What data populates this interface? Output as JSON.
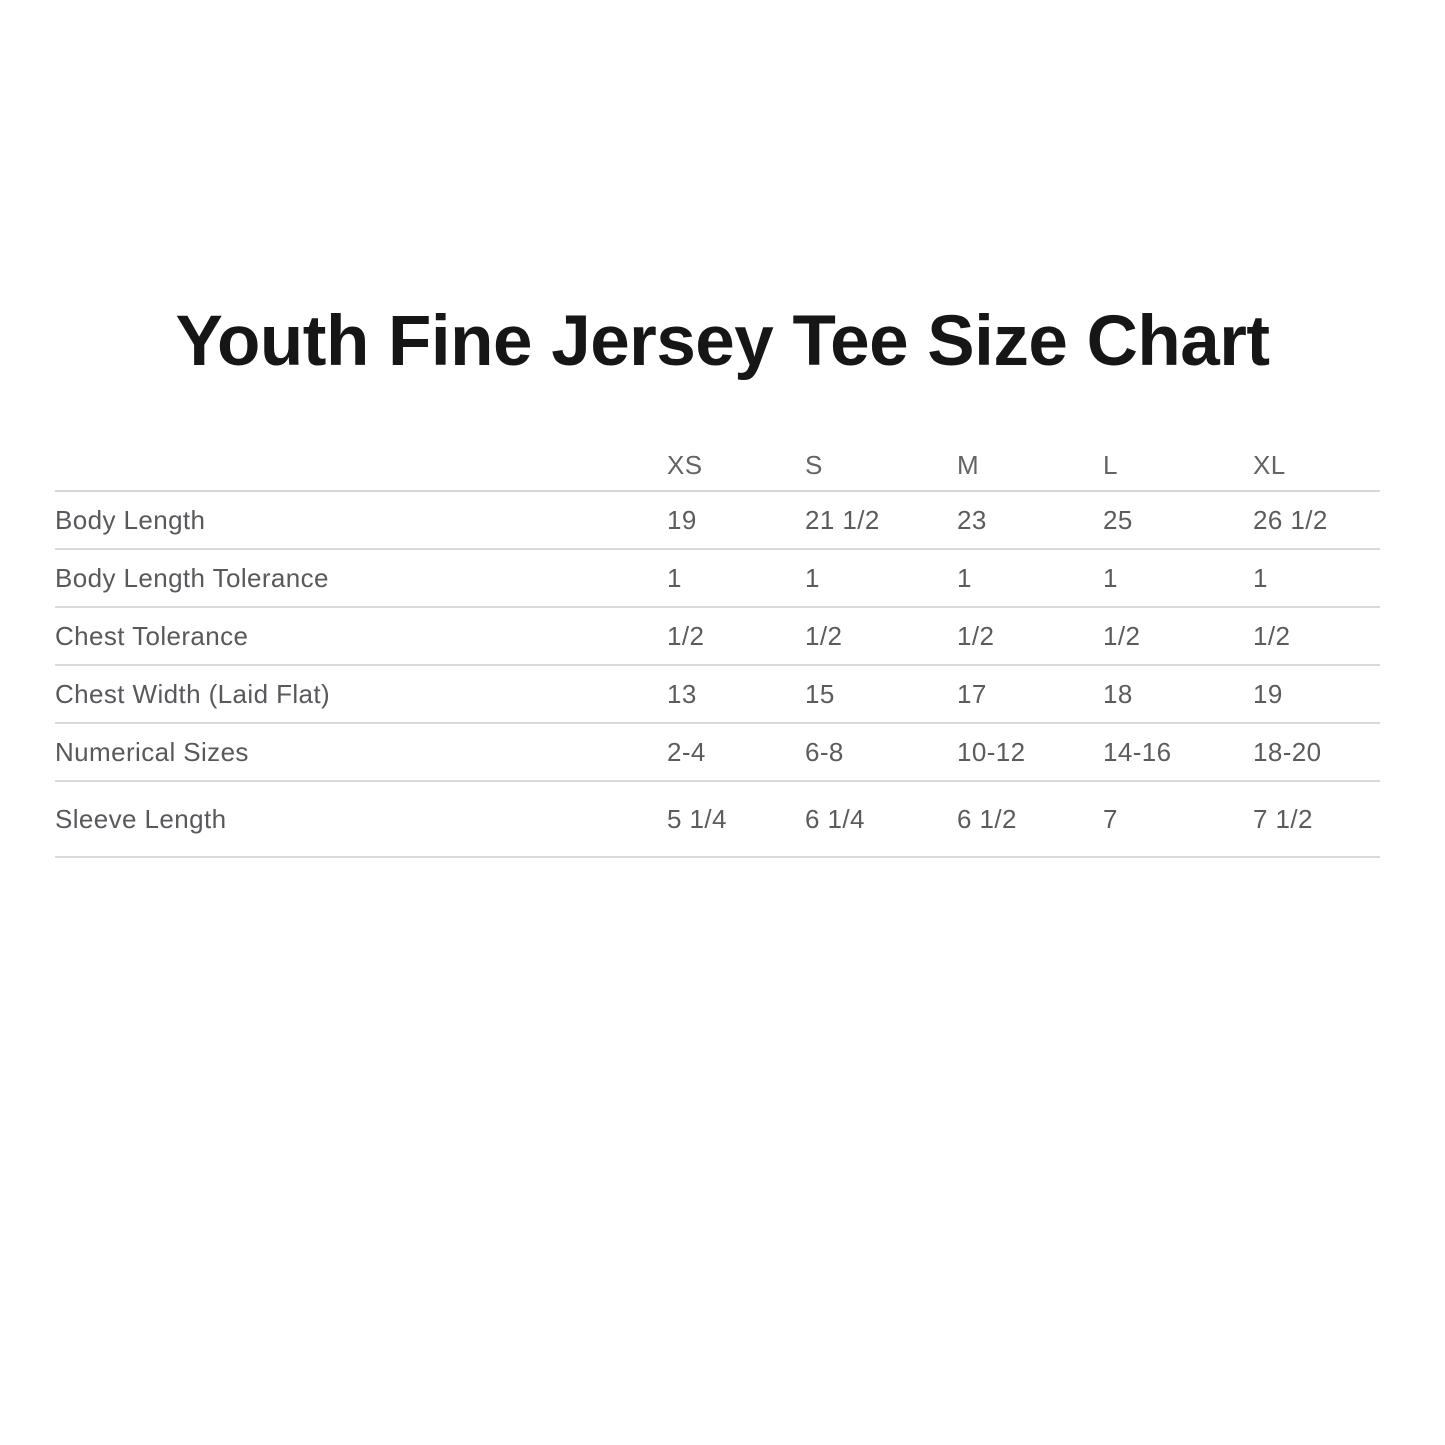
{
  "title": "Youth Fine Jersey Tee Size Chart",
  "chart_data": {
    "type": "table",
    "title": "Youth Fine Jersey Tee Size Chart",
    "columns": [
      "",
      "XS",
      "S",
      "M",
      "L",
      "XL"
    ],
    "rows": [
      {
        "label": "Body Length",
        "values": [
          "19",
          "21 1/2",
          "23",
          "25",
          "26 1/2"
        ]
      },
      {
        "label": "Body Length Tolerance",
        "values": [
          "1",
          "1",
          "1",
          "1",
          "1"
        ]
      },
      {
        "label": "Chest Tolerance",
        "values": [
          "1/2",
          "1/2",
          "1/2",
          "1/2",
          "1/2"
        ]
      },
      {
        "label": "Chest Width (Laid Flat)",
        "values": [
          "13",
          "15",
          "17",
          "18",
          "19"
        ]
      },
      {
        "label": "Numerical Sizes",
        "values": [
          "2-4",
          "6-8",
          "10-12",
          "14-16",
          "18-20"
        ]
      },
      {
        "label": "Sleeve Length",
        "values": [
          "5 1/4",
          "6 1/4",
          "6 1/2",
          "7",
          "7 1/2"
        ]
      }
    ],
    "layout": {
      "legend": "none",
      "grid": "horizontal-dividers-only"
    },
    "colors": {
      "title_text": "#161616",
      "table_text": "#5b5c5e",
      "header_text": "#646467",
      "divider": "#d9d9d9",
      "background": "#ffffff"
    }
  }
}
